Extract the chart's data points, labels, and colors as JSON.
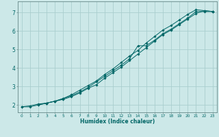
{
  "xlabel": "Humidex (Indice chaleur)",
  "bg_color": "#cce8e8",
  "grid_color": "#aacece",
  "line_color": "#006666",
  "spine_color": "#668888",
  "xlim": [
    -0.5,
    23.5
  ],
  "ylim": [
    1.6,
    7.6
  ],
  "yticks": [
    2,
    3,
    4,
    5,
    6,
    7
  ],
  "xticks": [
    0,
    1,
    2,
    3,
    4,
    5,
    6,
    7,
    8,
    9,
    10,
    11,
    12,
    13,
    14,
    15,
    16,
    17,
    18,
    19,
    20,
    21,
    22,
    23
  ],
  "line1_x": [
    0,
    1,
    2,
    3,
    4,
    5,
    6,
    7,
    8,
    9,
    10,
    11,
    12,
    13,
    14,
    15,
    16,
    17,
    18,
    19,
    20,
    21,
    22,
    23
  ],
  "line1_y": [
    1.9,
    1.95,
    2.05,
    2.1,
    2.2,
    2.3,
    2.45,
    2.65,
    2.9,
    3.1,
    3.45,
    3.75,
    4.05,
    4.4,
    4.75,
    5.1,
    5.45,
    5.8,
    6.05,
    6.35,
    6.65,
    6.95,
    7.1,
    7.05
  ],
  "line2_x": [
    0,
    1,
    2,
    3,
    4,
    5,
    6,
    7,
    8,
    9,
    10,
    11,
    12,
    13,
    14,
    15,
    16,
    17,
    18,
    19,
    20,
    21,
    22,
    23
  ],
  "line2_y": [
    1.9,
    1.9,
    2.0,
    2.1,
    2.2,
    2.35,
    2.5,
    2.7,
    2.95,
    3.25,
    3.55,
    3.85,
    4.15,
    4.5,
    5.2,
    5.2,
    5.5,
    5.85,
    6.1,
    6.4,
    6.7,
    7.05,
    7.05,
    7.05
  ],
  "line3_x": [
    2,
    3,
    4,
    5,
    6,
    7,
    8,
    9,
    10,
    11,
    12,
    13,
    14,
    15,
    16,
    17,
    18,
    19,
    20,
    21,
    22,
    23
  ],
  "line3_y": [
    2.0,
    2.1,
    2.2,
    2.35,
    2.55,
    2.8,
    3.05,
    3.3,
    3.65,
    3.95,
    4.3,
    4.65,
    4.95,
    5.35,
    5.7,
    6.05,
    6.3,
    6.6,
    6.9,
    7.15,
    7.1,
    7.05
  ]
}
